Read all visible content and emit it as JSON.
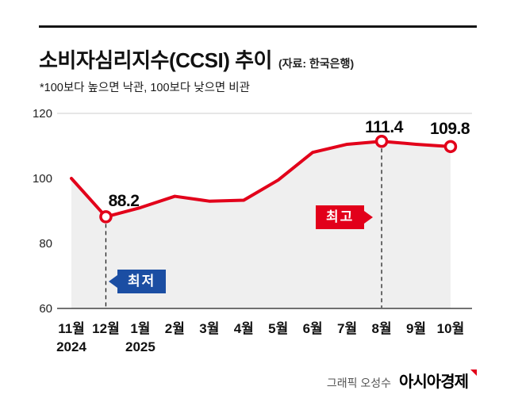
{
  "header": {
    "title": "소비자심리지수(CCSI) 추이",
    "source": "(자료: 한국은행)",
    "subtitle": "*100보다 높으면 낙관, 100보다 낮으면 비관"
  },
  "footer": {
    "credit": "그래픽 오성수",
    "brand": "아시아경제"
  },
  "colors": {
    "line": "#e2001a",
    "area_fill": "#efefef",
    "min_badge": "#1b4ea3",
    "max_badge": "#e2001a",
    "axis": "#444444",
    "gridline": "#cccccc"
  },
  "chart_data": {
    "type": "line",
    "title": "소비자심리지수(CCSI) 추이",
    "source": "한국은행",
    "x": [
      "11월",
      "12월",
      "1월",
      "2월",
      "3월",
      "4월",
      "5월",
      "6월",
      "7월",
      "8월",
      "9월",
      "10월"
    ],
    "values": [
      100,
      88.2,
      91,
      94.5,
      93,
      93.3,
      99.5,
      108,
      110.5,
      111.4,
      110.5,
      109.8
    ],
    "year_labels": [
      {
        "index": 0,
        "label": "2024"
      },
      {
        "index": 2,
        "label": "2025"
      }
    ],
    "yticks": [
      60,
      80,
      100,
      120
    ],
    "ylim": [
      60,
      120
    ],
    "grid": false,
    "legend": "none",
    "markers": [
      "12월",
      "8월",
      "10월"
    ],
    "annotations": [
      {
        "type": "min",
        "x": "12월",
        "value": 88.2,
        "label": "88.2",
        "badge": "최저"
      },
      {
        "type": "max",
        "x": "8월",
        "value": 111.4,
        "label": "111.4",
        "badge": "최고"
      },
      {
        "type": "last",
        "x": "10월",
        "value": 109.8,
        "label": "109.8",
        "badge": ""
      }
    ]
  }
}
